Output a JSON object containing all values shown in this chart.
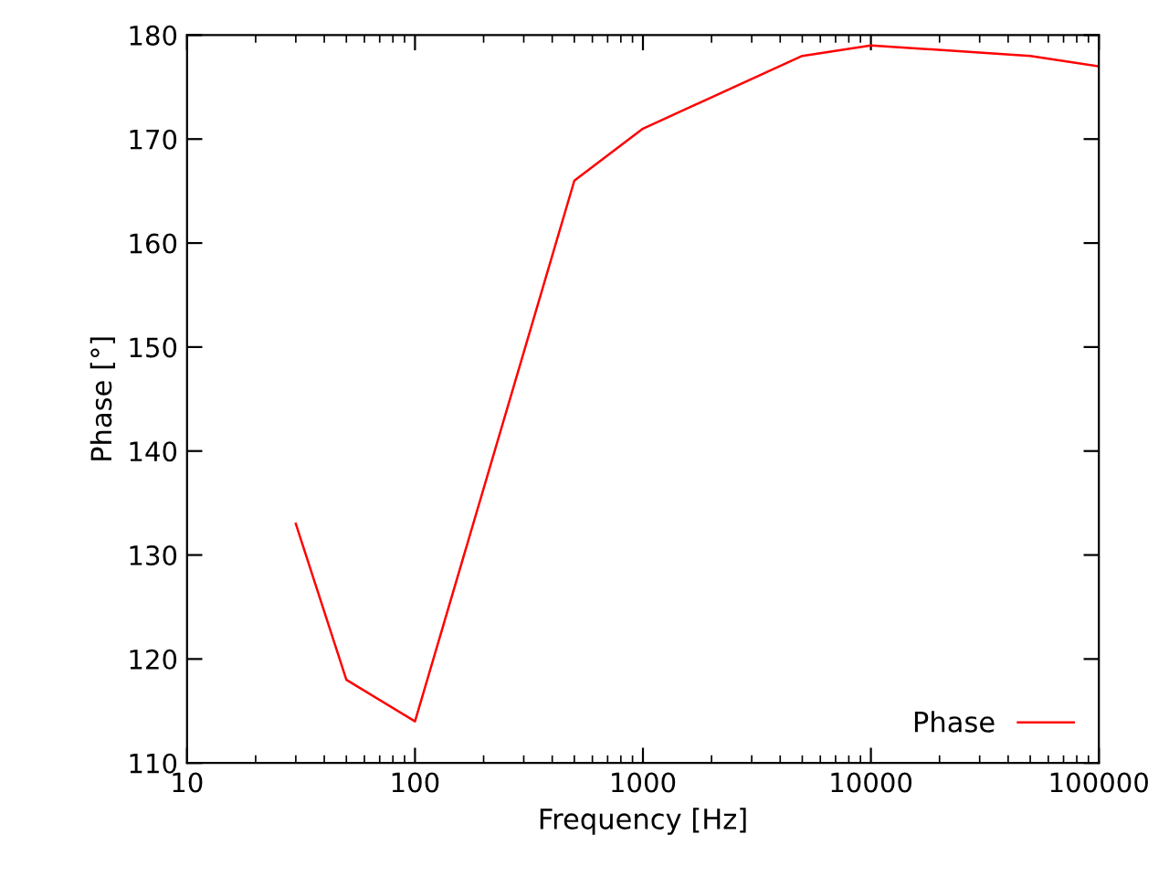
{
  "chart_data": {
    "type": "line",
    "xlabel": "Frequency [Hz]",
    "ylabel": "Phase [°]",
    "log": "x",
    "x": [
      30,
      50,
      100,
      500,
      1000,
      5000,
      10000,
      50000,
      100000
    ],
    "series": [
      {
        "name": "Phase",
        "color": "#ff0000",
        "values": [
          133,
          118,
          114,
          166,
          171,
          178,
          179,
          178,
          177
        ]
      }
    ],
    "xlim": [
      10,
      100000
    ],
    "xticks": [
      10,
      100,
      1000,
      10000,
      100000
    ],
    "ylim": [
      110,
      180
    ],
    "yticks": [
      110,
      120,
      130,
      140,
      150,
      160,
      170,
      180
    ],
    "grid": false,
    "legend": "bottom right",
    "marker": "none",
    "line_style": "solid"
  }
}
